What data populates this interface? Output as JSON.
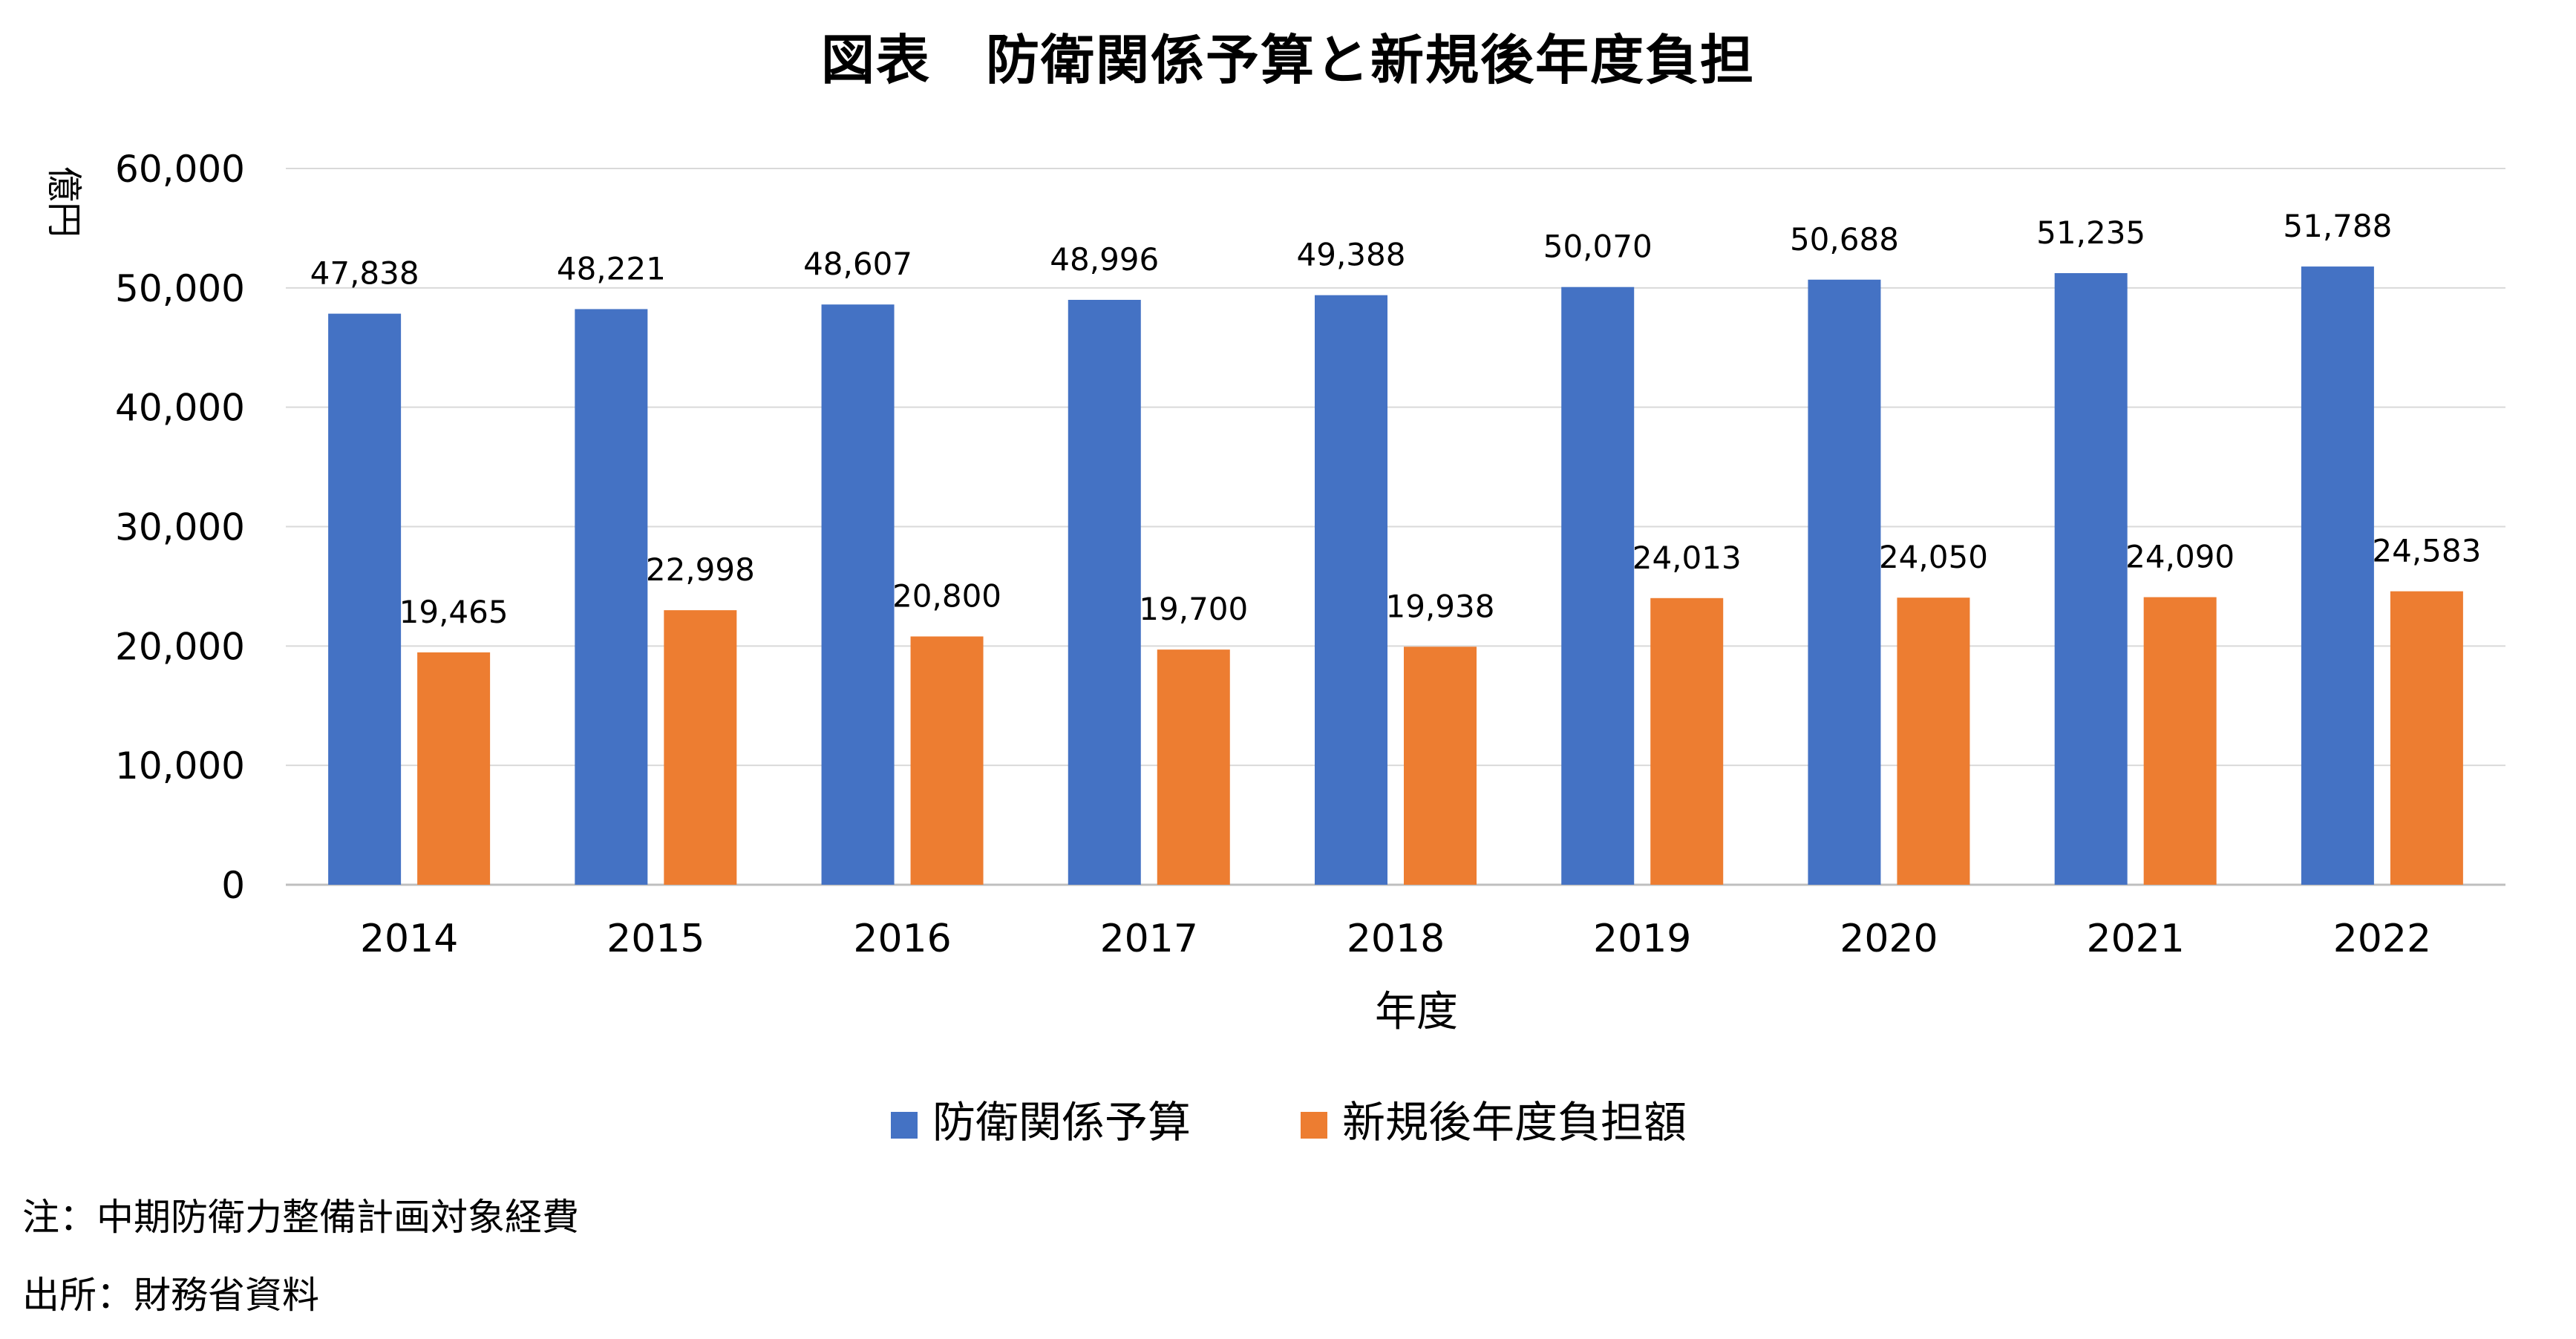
{
  "title": "図表　防衛関係予算と新規後年度負担",
  "chart_data": {
    "type": "bar",
    "categories": [
      "2014",
      "2015",
      "2016",
      "2017",
      "2018",
      "2019",
      "2020",
      "2021",
      "2022"
    ],
    "series": [
      {
        "name": "防衛関係予算",
        "color": "#4472C4",
        "values": [
          47838,
          48221,
          48607,
          48996,
          49388,
          50070,
          50688,
          51235,
          51788
        ],
        "labels": [
          "47,838",
          "48,221",
          "48,607",
          "48,996",
          "49,388",
          "50,070",
          "50,688",
          "51,235",
          "51,788"
        ]
      },
      {
        "name": "新規後年度負担額",
        "color": "#ED7D31",
        "values": [
          19465,
          22998,
          20800,
          19700,
          19938,
          24013,
          24050,
          24090,
          24583
        ],
        "labels": [
          "19,465",
          "22,998",
          "20,800",
          "19,700",
          "19,938",
          "24,013",
          "24,050",
          "24,090",
          "24,583"
        ]
      }
    ],
    "xlabel": "年度",
    "ylabel": "億円",
    "ylim": [
      0,
      60000
    ],
    "yticks": [
      0,
      10000,
      20000,
      30000,
      40000,
      50000,
      60000
    ],
    "ytick_labels": [
      "0",
      "10,000",
      "20,000",
      "30,000",
      "40,000",
      "50,000",
      "60,000"
    ],
    "grid": true,
    "legend_position": "bottom"
  },
  "note": "注：中期防衛力整備計画対象経費",
  "source": "出所：財務省資料"
}
